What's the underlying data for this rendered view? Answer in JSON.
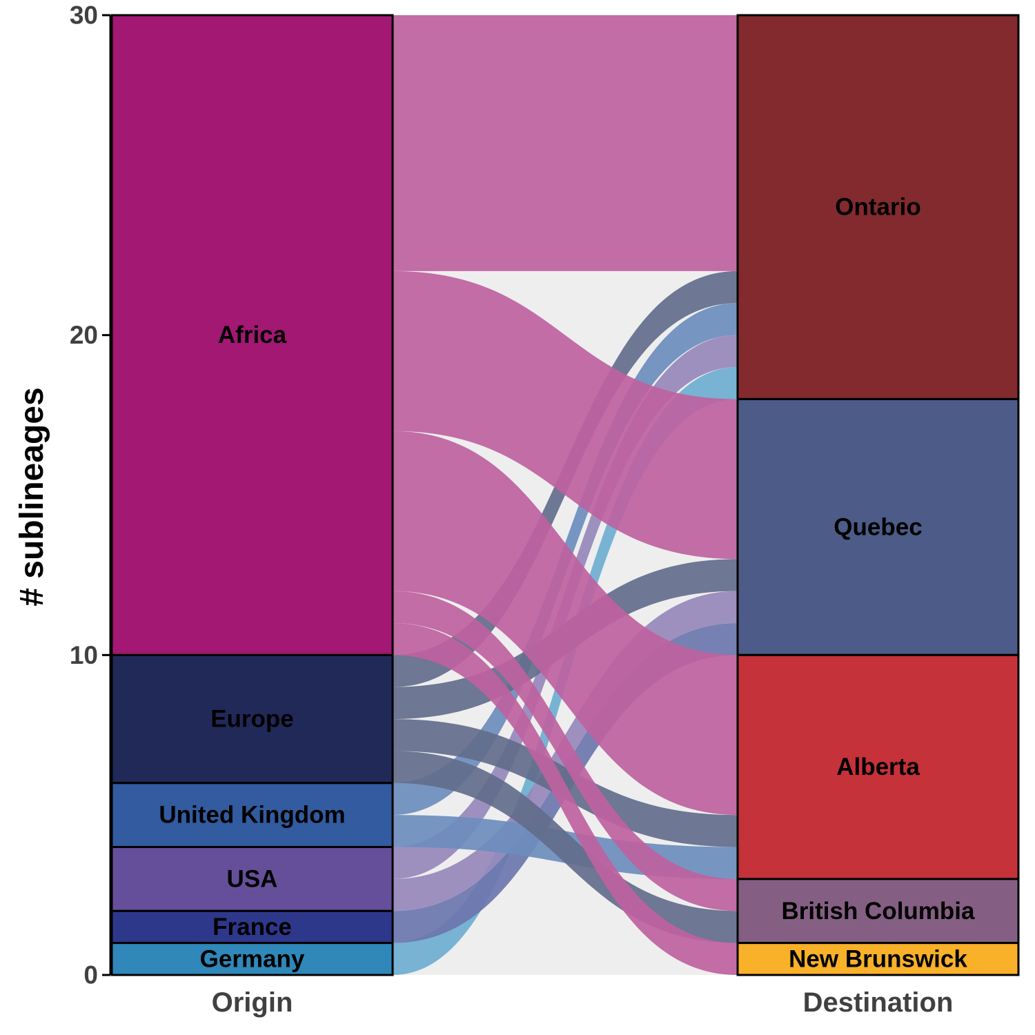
{
  "chart_data": {
    "type": "alluvial",
    "ylabel": "# sublineages",
    "xlabel": "",
    "ylim": [
      0,
      30
    ],
    "yticks": [
      0,
      10,
      20,
      30
    ],
    "axes": [
      "Origin",
      "Destination"
    ],
    "origin": [
      {
        "name": "Africa",
        "value": 20,
        "color": "#a21873"
      },
      {
        "name": "Europe",
        "value": 4,
        "color": "#212959"
      },
      {
        "name": "United Kingdom",
        "value": 2,
        "color": "#325ba0"
      },
      {
        "name": "USA",
        "value": 2,
        "color": "#664f9a"
      },
      {
        "name": "France",
        "value": 1,
        "color": "#2e388b"
      },
      {
        "name": "Germany",
        "value": 1,
        "color": "#2f88b9"
      }
    ],
    "destination": [
      {
        "name": "Ontario",
        "value": 12,
        "color": "#822a2e"
      },
      {
        "name": "Quebec",
        "value": 8,
        "color": "#4c5b87"
      },
      {
        "name": "Alberta",
        "value": 7,
        "color": "#c5323a"
      },
      {
        "name": "British Columbia",
        "value": 2,
        "color": "#855f83"
      },
      {
        "name": "New Brunswick",
        "value": 1,
        "color": "#f9b12a"
      }
    ],
    "flows": [
      {
        "from": "Africa",
        "to": "Ontario",
        "value": 8,
        "color": "#be62a0"
      },
      {
        "from": "Africa",
        "to": "Quebec",
        "value": 5,
        "color": "#be62a0"
      },
      {
        "from": "Africa",
        "to": "Alberta",
        "value": 5,
        "color": "#be62a0"
      },
      {
        "from": "Africa",
        "to": "British Columbia",
        "value": 1,
        "color": "#be62a0"
      },
      {
        "from": "Africa",
        "to": "New Brunswick",
        "value": 1,
        "color": "#be62a0"
      },
      {
        "from": "Europe",
        "to": "Ontario",
        "value": 1,
        "color": "#636c8b"
      },
      {
        "from": "Europe",
        "to": "Quebec",
        "value": 1,
        "color": "#636c8b"
      },
      {
        "from": "Europe",
        "to": "Alberta",
        "value": 1,
        "color": "#636c8b"
      },
      {
        "from": "Europe",
        "to": "British Columbia",
        "value": 1,
        "color": "#636c8b"
      },
      {
        "from": "United Kingdom",
        "to": "Ontario",
        "value": 1,
        "color": "#6d8dbd"
      },
      {
        "from": "United Kingdom",
        "to": "Alberta",
        "value": 1,
        "color": "#6d8dbd"
      },
      {
        "from": "USA",
        "to": "Ontario",
        "value": 1,
        "color": "#9688bb"
      },
      {
        "from": "USA",
        "to": "Quebec",
        "value": 1,
        "color": "#9688bb"
      },
      {
        "from": "France",
        "to": "Quebec",
        "value": 1,
        "color": "#6d76ad"
      },
      {
        "from": "Germany",
        "to": "Ontario",
        "value": 1,
        "color": "#6eaed0"
      }
    ]
  }
}
